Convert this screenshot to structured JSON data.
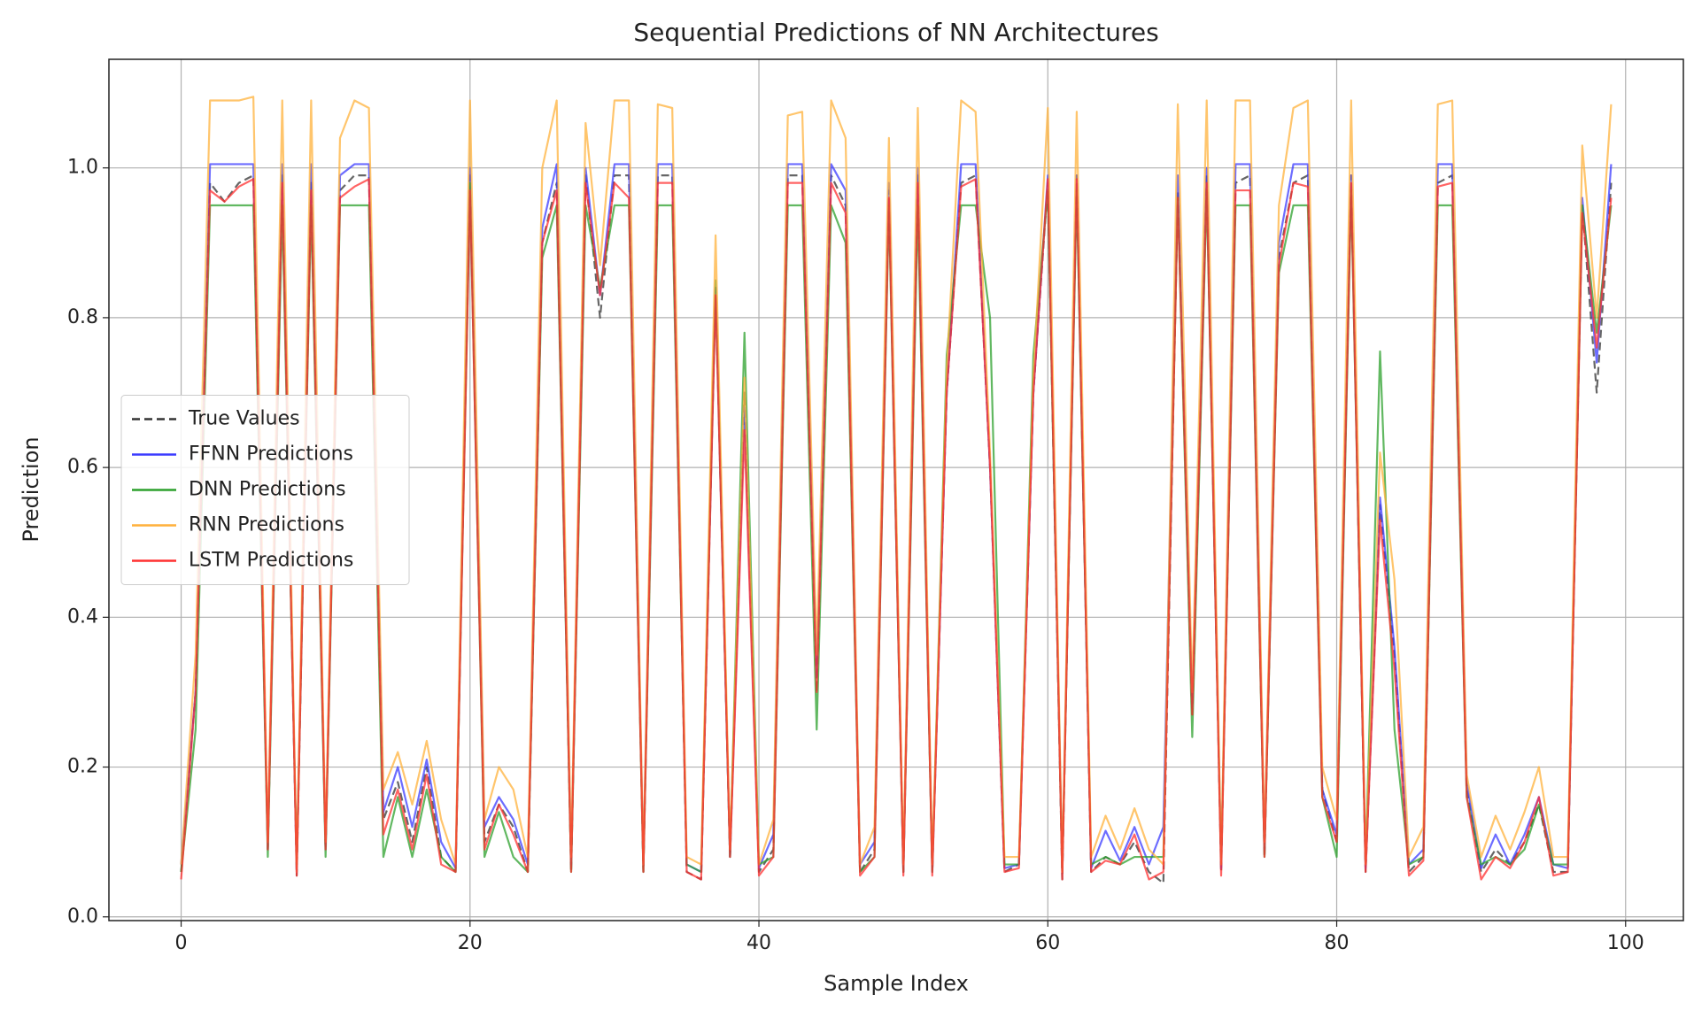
{
  "chart_data": {
    "type": "line",
    "title": "Sequential Predictions of NN Architectures",
    "xlabel": "Sample Index",
    "ylabel": "Prediction",
    "x": [
      0,
      1,
      2,
      3,
      4,
      5,
      6,
      7,
      8,
      9,
      10,
      11,
      12,
      13,
      14,
      15,
      16,
      17,
      18,
      19,
      20,
      21,
      22,
      23,
      24,
      25,
      26,
      27,
      28,
      29,
      30,
      31,
      32,
      33,
      34,
      35,
      36,
      37,
      38,
      39,
      40,
      41,
      42,
      43,
      44,
      45,
      46,
      47,
      48,
      49,
      50,
      51,
      52,
      53,
      54,
      55,
      56,
      57,
      58,
      59,
      60,
      61,
      62,
      63,
      64,
      65,
      66,
      67,
      68,
      69,
      70,
      71,
      72,
      73,
      74,
      75,
      76,
      77,
      78,
      79,
      80,
      81,
      82,
      83,
      84,
      85,
      86,
      87,
      88,
      89,
      90,
      91,
      92,
      93,
      94,
      95,
      96,
      97,
      98,
      99
    ],
    "xlim": [
      -5,
      104
    ],
    "ylim": [
      -0.005,
      1.145
    ],
    "xticks": [
      0,
      20,
      40,
      60,
      80,
      100
    ],
    "yticks": [
      {
        "value": 0,
        "label": "0.0"
      },
      0.2,
      0.4,
      0.6,
      0.8,
      {
        "value": 1,
        "label": "1.0"
      }
    ],
    "grid": true,
    "legend": "center left",
    "series": [
      {
        "name": "True Values",
        "color": "#333333",
        "linestyle": "dashed",
        "values": [
          0.06,
          0.3,
          0.98,
          0.955,
          0.98,
          0.99,
          0.09,
          0.99,
          0.055,
          0.98,
          0.09,
          0.97,
          0.99,
          0.99,
          0.13,
          0.18,
          0.1,
          0.2,
          0.08,
          0.06,
          0.99,
          0.1,
          0.15,
          0.12,
          0.06,
          0.9,
          0.98,
          0.06,
          0.99,
          0.8,
          0.99,
          0.99,
          0.06,
          0.99,
          0.99,
          0.06,
          0.05,
          0.84,
          0.08,
          0.7,
          0.06,
          0.09,
          0.99,
          0.99,
          0.3,
          0.99,
          0.95,
          0.06,
          0.09,
          0.97,
          0.06,
          0.99,
          0.06,
          0.7,
          0.98,
          0.99,
          0.6,
          0.06,
          0.07,
          0.7,
          0.98,
          0.05,
          0.99,
          0.06,
          0.08,
          0.07,
          0.1,
          0.06,
          0.045,
          0.97,
          0.27,
          0.99,
          0.06,
          0.98,
          0.99,
          0.08,
          0.88,
          0.98,
          0.99,
          0.17,
          0.1,
          0.99,
          0.06,
          0.55,
          0.35,
          0.06,
          0.08,
          0.98,
          0.99,
          0.17,
          0.06,
          0.09,
          0.07,
          0.1,
          0.15,
          0.06,
          0.06,
          0.95,
          0.7,
          0.98
        ]
      },
      {
        "name": "FFNN Predictions",
        "color": "#3b3bff",
        "linestyle": "solid",
        "values": [
          0.07,
          0.3,
          1.005,
          1.005,
          1.005,
          1.005,
          0.09,
          1.005,
          0.06,
          1.005,
          0.09,
          0.99,
          1.005,
          1.005,
          0.14,
          0.2,
          0.12,
          0.21,
          0.1,
          0.065,
          1.0,
          0.12,
          0.16,
          0.13,
          0.07,
          0.92,
          1.005,
          0.07,
          1.0,
          0.83,
          1.005,
          1.005,
          0.07,
          1.005,
          1.005,
          0.07,
          0.06,
          0.84,
          0.08,
          0.68,
          0.065,
          0.11,
          1.005,
          1.005,
          0.32,
          1.005,
          0.97,
          0.07,
          0.1,
          0.98,
          0.06,
          1.0,
          0.06,
          0.7,
          1.005,
          1.005,
          0.6,
          0.065,
          0.07,
          0.7,
          0.99,
          0.06,
          0.99,
          0.065,
          0.115,
          0.075,
          0.12,
          0.07,
          0.12,
          0.99,
          0.28,
          1.0,
          0.065,
          1.005,
          1.005,
          0.09,
          0.9,
          1.005,
          1.005,
          0.17,
          0.11,
          0.99,
          0.065,
          0.56,
          0.36,
          0.07,
          0.09,
          1.005,
          1.005,
          0.18,
          0.065,
          0.11,
          0.07,
          0.11,
          0.16,
          0.07,
          0.065,
          0.96,
          0.74,
          1.005
        ]
      },
      {
        "name": "DNN Predictions",
        "color": "#2ca02c",
        "linestyle": "solid",
        "values": [
          0.06,
          0.25,
          0.95,
          0.95,
          0.95,
          0.95,
          0.08,
          0.95,
          0.07,
          0.95,
          0.08,
          0.95,
          0.95,
          0.95,
          0.08,
          0.16,
          0.08,
          0.17,
          0.08,
          0.06,
          0.98,
          0.08,
          0.14,
          0.08,
          0.06,
          0.88,
          0.95,
          0.06,
          0.95,
          0.84,
          0.95,
          0.95,
          0.06,
          0.95,
          0.95,
          0.07,
          0.06,
          0.85,
          0.08,
          0.78,
          0.07,
          0.08,
          0.95,
          0.95,
          0.25,
          0.95,
          0.9,
          0.06,
          0.08,
          0.95,
          0.06,
          0.95,
          0.06,
          0.75,
          0.95,
          0.95,
          0.8,
          0.07,
          0.07,
          0.75,
          0.97,
          0.06,
          0.97,
          0.07,
          0.08,
          0.07,
          0.08,
          0.08,
          0.08,
          0.96,
          0.24,
          0.97,
          0.07,
          0.95,
          0.95,
          0.08,
          0.86,
          0.95,
          0.95,
          0.16,
          0.08,
          0.97,
          0.07,
          0.755,
          0.25,
          0.07,
          0.08,
          0.95,
          0.95,
          0.16,
          0.07,
          0.08,
          0.07,
          0.09,
          0.15,
          0.07,
          0.07,
          0.95,
          0.78,
          0.95
        ]
      },
      {
        "name": "RNN Predictions",
        "color": "#ffb13b",
        "linestyle": "solid",
        "values": [
          0.07,
          0.35,
          1.09,
          1.09,
          1.09,
          1.095,
          0.1,
          1.09,
          0.06,
          1.09,
          0.1,
          1.04,
          1.09,
          1.08,
          0.17,
          0.22,
          0.15,
          0.235,
          0.13,
          0.07,
          1.09,
          0.13,
          0.2,
          0.17,
          0.08,
          1.0,
          1.09,
          0.08,
          1.06,
          0.87,
          1.09,
          1.09,
          0.07,
          1.085,
          1.08,
          0.08,
          0.07,
          0.91,
          0.09,
          0.72,
          0.07,
          0.13,
          1.07,
          1.075,
          0.35,
          1.09,
          1.04,
          0.07,
          0.12,
          1.04,
          0.07,
          1.08,
          0.07,
          0.73,
          1.09,
          1.075,
          0.62,
          0.08,
          0.08,
          0.72,
          1.08,
          0.06,
          1.075,
          0.08,
          0.135,
          0.09,
          0.145,
          0.09,
          0.07,
          1.085,
          0.3,
          1.09,
          0.07,
          1.09,
          1.09,
          0.1,
          0.95,
          1.08,
          1.09,
          0.2,
          0.13,
          1.09,
          0.07,
          0.62,
          0.45,
          0.08,
          0.12,
          1.085,
          1.09,
          0.19,
          0.08,
          0.135,
          0.09,
          0.14,
          0.2,
          0.08,
          0.08,
          1.03,
          0.8,
          1.085
        ]
      },
      {
        "name": "LSTM Predictions",
        "color": "#ff3030",
        "linestyle": "solid",
        "values": [
          0.05,
          0.3,
          0.97,
          0.955,
          0.975,
          0.985,
          0.09,
          0.98,
          0.055,
          0.97,
          0.09,
          0.96,
          0.975,
          0.985,
          0.11,
          0.17,
          0.09,
          0.19,
          0.07,
          0.06,
          0.97,
          0.09,
          0.15,
          0.11,
          0.06,
          0.9,
          0.97,
          0.06,
          0.98,
          0.83,
          0.98,
          0.96,
          0.06,
          0.98,
          0.98,
          0.06,
          0.05,
          0.83,
          0.08,
          0.65,
          0.055,
          0.08,
          0.98,
          0.98,
          0.3,
          0.98,
          0.94,
          0.055,
          0.08,
          0.96,
          0.055,
          0.98,
          0.055,
          0.7,
          0.975,
          0.985,
          0.6,
          0.06,
          0.065,
          0.7,
          0.985,
          0.05,
          0.985,
          0.06,
          0.075,
          0.07,
          0.11,
          0.05,
          0.06,
          0.96,
          0.27,
          0.98,
          0.055,
          0.97,
          0.97,
          0.08,
          0.87,
          0.98,
          0.975,
          0.16,
          0.1,
          0.98,
          0.06,
          0.53,
          0.33,
          0.055,
          0.075,
          0.975,
          0.98,
          0.16,
          0.05,
          0.08,
          0.065,
          0.1,
          0.16,
          0.055,
          0.06,
          0.94,
          0.76,
          0.96
        ]
      }
    ]
  }
}
